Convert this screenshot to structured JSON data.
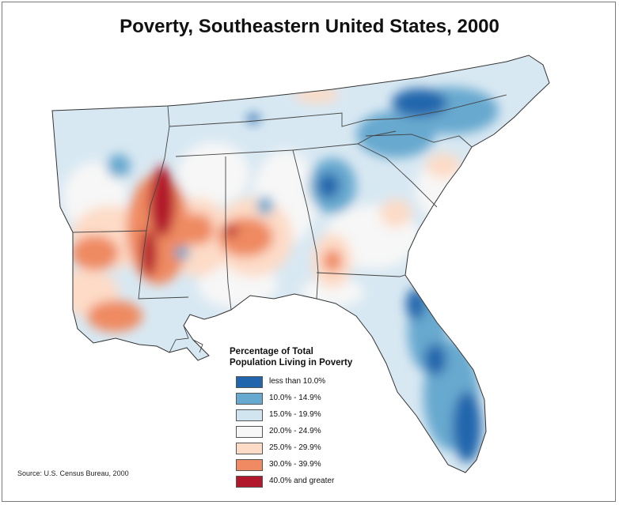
{
  "title": "Poverty, Southeastern United States, 2000",
  "legend": {
    "title_line1": "Percentage of Total",
    "title_line2": "Population Living in Poverty",
    "items": [
      {
        "label": "less than 10.0%",
        "color": "#2166ac"
      },
      {
        "label": "10.0% - 14.9%",
        "color": "#67a9cf"
      },
      {
        "label": "15.0% - 19.9%",
        "color": "#d1e5f0"
      },
      {
        "label": "20.0% - 24.9%",
        "color": "#f7f7f7"
      },
      {
        "label": "25.0% - 29.9%",
        "color": "#fddbc7"
      },
      {
        "label": "30.0% - 39.9%",
        "color": "#ef8a62"
      },
      {
        "label": "40.0% and greater",
        "color": "#b2182b"
      }
    ]
  },
  "source": "Source:  U.S. Census Bureau, 2000"
}
